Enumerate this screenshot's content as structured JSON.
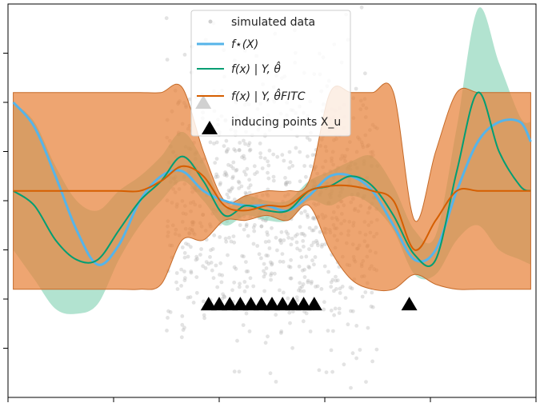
{
  "chart_data": {
    "type": "line",
    "xlim": [
      -2.5,
      2.5
    ],
    "ylim": [
      -4.0,
      4.0
    ],
    "x_ticks": [
      -2.5,
      -1.5,
      -0.5,
      0.5,
      1.5,
      2.5
    ],
    "y_ticks": [
      -3.0,
      -2.0,
      -1.0,
      0.0,
      1.0,
      2.0,
      3.0
    ],
    "tick_labels_visible": false,
    "grid": false,
    "legend_position": "top-center",
    "legend": {
      "simulated": "simulated data",
      "fstar": "f⋆(X)",
      "full": "f(x) | Y, θ̂",
      "fitc": "f(x) | Y, θ̂FITC",
      "inducing": "inducing points X_u"
    },
    "colors": {
      "fstar": "#56b4e9",
      "full": "#009e73",
      "fitc": "#d55e00",
      "band_full": "#7fd1b0",
      "band_fitc": "#e8823a",
      "scatter": "#b0b0b0",
      "inducing": "#000000"
    },
    "x": [
      -2.45,
      -2.25,
      -2.05,
      -1.85,
      -1.65,
      -1.45,
      -1.25,
      -1.05,
      -0.85,
      -0.65,
      -0.45,
      -0.25,
      -0.05,
      0.15,
      0.35,
      0.55,
      0.75,
      0.95,
      1.15,
      1.35,
      1.55,
      1.75,
      1.95,
      2.15,
      2.35,
      2.45
    ],
    "series": [
      {
        "key": "fstar",
        "values": [
          2.0,
          1.5,
          0.5,
          -0.6,
          -1.3,
          -0.9,
          0.0,
          0.5,
          0.6,
          0.2,
          0.0,
          -0.1,
          -0.1,
          -0.2,
          0.1,
          0.5,
          0.5,
          0.2,
          -0.5,
          -1.2,
          -1.0,
          0.2,
          1.2,
          1.6,
          1.6,
          1.2
        ]
      },
      {
        "key": "full",
        "values": [
          0.2,
          -0.1,
          -0.8,
          -1.2,
          -1.2,
          -0.6,
          0.0,
          0.4,
          0.9,
          0.4,
          -0.3,
          -0.1,
          -0.2,
          -0.2,
          0.2,
          0.3,
          0.5,
          0.3,
          -0.3,
          -1.1,
          -1.2,
          0.6,
          2.2,
          1.0,
          0.3,
          0.2
        ]
      },
      {
        "key": "fitc",
        "values": [
          0.2,
          0.2,
          0.2,
          0.2,
          0.2,
          0.2,
          0.2,
          0.4,
          0.7,
          0.5,
          -0.1,
          -0.2,
          -0.1,
          -0.1,
          0.2,
          0.3,
          0.3,
          0.2,
          0.0,
          -1.0,
          -0.4,
          0.2,
          0.2,
          0.2,
          0.2,
          0.2
        ]
      }
    ],
    "band_full": {
      "lower": [
        -1.0,
        -1.6,
        -2.2,
        -2.3,
        -2.1,
        -1.2,
        -0.5,
        0.0,
        0.4,
        0.0,
        -0.5,
        -0.3,
        -0.4,
        -0.4,
        0.0,
        -0.1,
        0.1,
        -0.1,
        -0.6,
        -1.5,
        -1.5,
        -0.8,
        -0.5,
        -1.0,
        -1.2,
        -1.3
      ],
      "upper": [
        2.0,
        1.6,
        0.7,
        0.0,
        -0.2,
        0.2,
        0.5,
        0.9,
        1.4,
        0.8,
        -0.1,
        0.1,
        0.0,
        0.0,
        0.4,
        0.6,
        0.8,
        0.9,
        0.3,
        -0.6,
        -0.7,
        1.5,
        3.9,
        2.8,
        1.7,
        1.6
      ]
    },
    "band_fitc": {
      "lower": [
        -1.8,
        -1.8,
        -1.8,
        -1.8,
        -1.8,
        -1.8,
        -1.8,
        -1.7,
        -0.8,
        -0.8,
        -0.4,
        -0.4,
        -0.3,
        -0.4,
        -0.1,
        -1.0,
        -1.6,
        -1.8,
        -1.8,
        -1.5,
        -1.7,
        -1.8,
        -1.8,
        -1.8,
        -1.8,
        -1.8
      ],
      "upper": [
        2.2,
        2.2,
        2.2,
        2.2,
        2.2,
        2.2,
        2.2,
        2.2,
        2.3,
        1.0,
        0.0,
        0.1,
        0.2,
        0.2,
        0.4,
        2.2,
        2.2,
        2.2,
        2.2,
        -0.4,
        1.0,
        2.2,
        2.2,
        2.2,
        2.2,
        2.2
      ]
    },
    "inducing_points": {
      "x": [
        -0.65,
        -0.6,
        -0.5,
        -0.4,
        -0.3,
        -0.2,
        -0.1,
        0.0,
        0.1,
        0.2,
        0.3,
        0.4,
        1.3
      ],
      "y": [
        2.0,
        -2.1,
        -2.1,
        -2.1,
        -2.1,
        -2.1,
        -2.1,
        -2.1,
        -2.1,
        -2.1,
        -2.1,
        -2.1,
        -2.1
      ]
    },
    "scatter": {
      "count": 900,
      "x_range": [
        -1.0,
        1.0
      ],
      "y_std": 1.4
    }
  }
}
